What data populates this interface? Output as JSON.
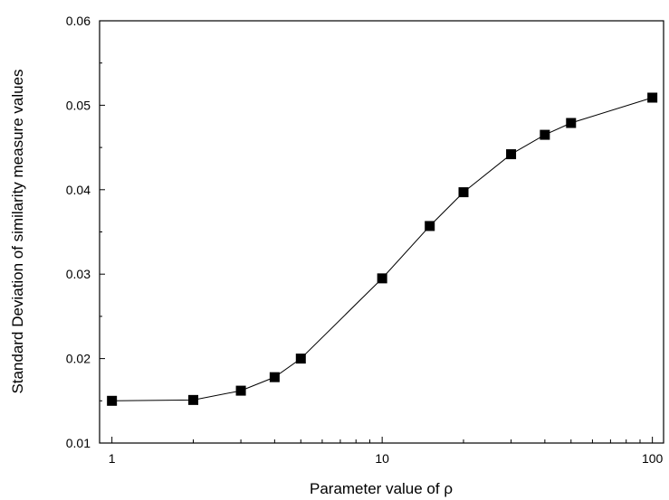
{
  "chart_data": {
    "type": "line",
    "xlabel": "Parameter value of ρ",
    "ylabel": "Standard Deviation of similarity measure values",
    "xscale": "log",
    "xlim": [
      0.9,
      110
    ],
    "ylim": [
      0.01,
      0.06
    ],
    "grid": false,
    "legend": "none",
    "x_ticks": [
      "1",
      "10",
      "100"
    ],
    "y_ticks": [
      "0.01",
      "0.02",
      "0.03",
      "0.04",
      "0.05",
      "0.06"
    ],
    "series": [
      {
        "marker": "square",
        "color": "#000000",
        "x": [
          1,
          2,
          3,
          4,
          5,
          10,
          15,
          20,
          30,
          40,
          50,
          100
        ],
        "y": [
          0.015,
          0.0151,
          0.0162,
          0.0178,
          0.02,
          0.0295,
          0.0357,
          0.0397,
          0.0442,
          0.0465,
          0.0479,
          0.0509
        ]
      }
    ]
  }
}
